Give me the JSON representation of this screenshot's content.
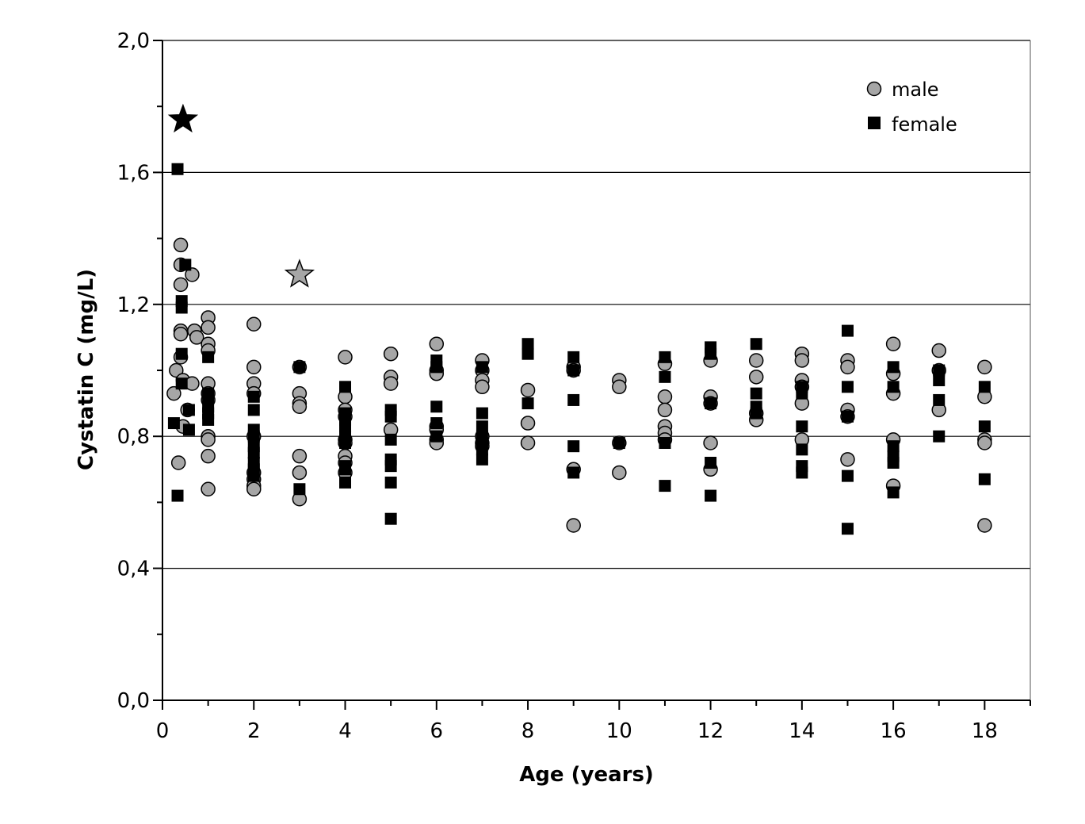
{
  "chart_data": {
    "type": "scatter",
    "xlabel": "Age (years)",
    "ylabel": "Cystatin C (mg/L)",
    "xlim": [
      0,
      19
    ],
    "ylim": [
      0,
      2.0
    ],
    "x_ticks": [
      "0",
      "2",
      "4",
      "6",
      "8",
      "10",
      "12",
      "14",
      "16",
      "18"
    ],
    "y_ticks": [
      "0,0",
      "0,4",
      "0,8",
      "1,2",
      "1,6",
      "2,0"
    ],
    "grid": "horizontal",
    "legend_position": "top-right",
    "colors": {
      "male": "#a6a6a6",
      "female": "#000000",
      "gridline": "#000000"
    },
    "series": [
      {
        "name": "male",
        "marker": "circle",
        "points": [
          [
            0.25,
            0.93
          ],
          [
            0.3,
            1.0
          ],
          [
            0.35,
            0.72
          ],
          [
            0.4,
            1.38
          ],
          [
            0.4,
            1.32
          ],
          [
            0.4,
            1.26
          ],
          [
            0.4,
            1.12
          ],
          [
            0.4,
            1.11
          ],
          [
            0.4,
            1.04
          ],
          [
            0.45,
            0.97
          ],
          [
            0.45,
            0.83
          ],
          [
            0.55,
            0.88
          ],
          [
            0.65,
            1.29
          ],
          [
            0.65,
            0.96
          ],
          [
            0.7,
            1.12
          ],
          [
            0.75,
            1.1
          ],
          [
            1,
            1.16
          ],
          [
            1,
            1.13
          ],
          [
            1,
            1.08
          ],
          [
            1,
            1.06
          ],
          [
            1,
            0.96
          ],
          [
            1,
            0.93
          ],
          [
            1,
            0.91
          ],
          [
            1,
            0.8
          ],
          [
            1,
            0.79
          ],
          [
            1,
            0.74
          ],
          [
            1,
            0.64
          ],
          [
            2,
            1.14
          ],
          [
            2,
            1.01
          ],
          [
            2,
            0.96
          ],
          [
            2,
            0.93
          ],
          [
            2,
            0.8
          ],
          [
            2,
            0.69
          ],
          [
            2,
            0.67
          ],
          [
            2,
            0.65
          ],
          [
            2,
            0.64
          ],
          [
            3,
            1.01
          ],
          [
            3,
            0.93
          ],
          [
            3,
            0.9
          ],
          [
            3,
            0.89
          ],
          [
            3,
            0.74
          ],
          [
            3,
            0.69
          ],
          [
            3,
            0.61
          ],
          [
            4,
            1.04
          ],
          [
            4,
            0.92
          ],
          [
            4,
            0.88
          ],
          [
            4,
            0.86
          ],
          [
            4,
            0.79
          ],
          [
            4,
            0.78
          ],
          [
            4,
            0.74
          ],
          [
            4,
            0.72
          ],
          [
            4,
            0.69
          ],
          [
            5,
            1.05
          ],
          [
            5,
            0.98
          ],
          [
            5,
            0.96
          ],
          [
            5,
            0.82
          ],
          [
            6,
            1.08
          ],
          [
            6,
            1.0
          ],
          [
            6,
            0.99
          ],
          [
            6,
            0.83
          ],
          [
            6,
            0.82
          ],
          [
            6,
            0.79
          ],
          [
            6,
            0.78
          ],
          [
            7,
            1.03
          ],
          [
            7,
            1.0
          ],
          [
            7,
            0.97
          ],
          [
            7,
            0.95
          ],
          [
            7,
            0.8
          ],
          [
            7,
            0.78
          ],
          [
            7,
            0.77
          ],
          [
            8,
            0.94
          ],
          [
            8,
            0.84
          ],
          [
            8,
            0.78
          ],
          [
            9,
            1.01
          ],
          [
            9,
            1.0
          ],
          [
            9,
            0.7
          ],
          [
            9,
            0.53
          ],
          [
            10,
            0.97
          ],
          [
            10,
            0.95
          ],
          [
            10,
            0.78
          ],
          [
            10,
            0.69
          ],
          [
            11,
            1.02
          ],
          [
            11,
            0.92
          ],
          [
            11,
            0.88
          ],
          [
            11,
            0.83
          ],
          [
            11,
            0.81
          ],
          [
            11,
            0.79
          ],
          [
            12,
            1.03
          ],
          [
            12,
            0.92
          ],
          [
            12,
            0.9
          ],
          [
            12,
            0.78
          ],
          [
            12,
            0.7
          ],
          [
            13,
            1.03
          ],
          [
            13,
            0.98
          ],
          [
            13,
            0.87
          ],
          [
            13,
            0.85
          ],
          [
            14,
            1.05
          ],
          [
            14,
            1.03
          ],
          [
            14,
            0.97
          ],
          [
            14,
            0.95
          ],
          [
            14,
            0.9
          ],
          [
            14,
            0.79
          ],
          [
            15,
            1.03
          ],
          [
            15,
            1.01
          ],
          [
            15,
            0.88
          ],
          [
            15,
            0.86
          ],
          [
            15,
            0.73
          ],
          [
            16,
            1.08
          ],
          [
            16,
            0.99
          ],
          [
            16,
            0.93
          ],
          [
            16,
            0.79
          ],
          [
            16,
            0.65
          ],
          [
            17,
            1.06
          ],
          [
            17,
            1.0
          ],
          [
            17,
            0.88
          ],
          [
            18,
            1.01
          ],
          [
            18,
            0.92
          ],
          [
            18,
            0.79
          ],
          [
            18,
            0.78
          ],
          [
            18,
            0.53
          ]
        ]
      },
      {
        "name": "female",
        "marker": "square",
        "points": [
          [
            0.25,
            0.84
          ],
          [
            0.33,
            1.61
          ],
          [
            0.33,
            0.62
          ],
          [
            0.42,
            1.21
          ],
          [
            0.42,
            1.19
          ],
          [
            0.42,
            1.05
          ],
          [
            0.42,
            0.96
          ],
          [
            0.5,
            1.32
          ],
          [
            0.58,
            0.88
          ],
          [
            0.58,
            0.82
          ],
          [
            1,
            1.04
          ],
          [
            1,
            0.93
          ],
          [
            1,
            0.92
          ],
          [
            1,
            0.89
          ],
          [
            1,
            0.87
          ],
          [
            1,
            0.85
          ],
          [
            2,
            0.92
          ],
          [
            2,
            0.88
          ],
          [
            2,
            0.82
          ],
          [
            2,
            0.8
          ],
          [
            2,
            0.77
          ],
          [
            2,
            0.75
          ],
          [
            2,
            0.72
          ],
          [
            2,
            0.7
          ],
          [
            2,
            0.68
          ],
          [
            3,
            1.01
          ],
          [
            3,
            0.64
          ],
          [
            4,
            0.95
          ],
          [
            4,
            0.87
          ],
          [
            4,
            0.85
          ],
          [
            4,
            0.83
          ],
          [
            4,
            0.8
          ],
          [
            4,
            0.78
          ],
          [
            4,
            0.71
          ],
          [
            4,
            0.7
          ],
          [
            4,
            0.66
          ],
          [
            5,
            0.88
          ],
          [
            5,
            0.86
          ],
          [
            5,
            0.79
          ],
          [
            5,
            0.73
          ],
          [
            5,
            0.71
          ],
          [
            5,
            0.66
          ],
          [
            5,
            0.55
          ],
          [
            6,
            1.03
          ],
          [
            6,
            1.01
          ],
          [
            6,
            0.89
          ],
          [
            6,
            0.84
          ],
          [
            6,
            0.8
          ],
          [
            7,
            1.01
          ],
          [
            7,
            0.87
          ],
          [
            7,
            0.83
          ],
          [
            7,
            0.8
          ],
          [
            7,
            0.78
          ],
          [
            7,
            0.76
          ],
          [
            7,
            0.73
          ],
          [
            8,
            1.08
          ],
          [
            8,
            1.05
          ],
          [
            8,
            0.9
          ],
          [
            9,
            1.04
          ],
          [
            9,
            1.0
          ],
          [
            9,
            0.91
          ],
          [
            9,
            0.77
          ],
          [
            9,
            0.69
          ],
          [
            10,
            0.78
          ],
          [
            11,
            1.04
          ],
          [
            11,
            0.98
          ],
          [
            11,
            0.78
          ],
          [
            11,
            0.65
          ],
          [
            12,
            1.07
          ],
          [
            12,
            1.05
          ],
          [
            12,
            0.9
          ],
          [
            12,
            0.72
          ],
          [
            12,
            0.62
          ],
          [
            13,
            1.08
          ],
          [
            13,
            0.93
          ],
          [
            13,
            0.89
          ],
          [
            13,
            0.87
          ],
          [
            14,
            0.95
          ],
          [
            14,
            0.93
          ],
          [
            14,
            0.83
          ],
          [
            14,
            0.76
          ],
          [
            14,
            0.71
          ],
          [
            14,
            0.69
          ],
          [
            15,
            1.12
          ],
          [
            15,
            0.95
          ],
          [
            15,
            0.86
          ],
          [
            15,
            0.68
          ],
          [
            15,
            0.52
          ],
          [
            16,
            1.01
          ],
          [
            16,
            0.95
          ],
          [
            16,
            0.77
          ],
          [
            16,
            0.74
          ],
          [
            16,
            0.72
          ],
          [
            16,
            0.63
          ],
          [
            17,
            1.0
          ],
          [
            17,
            0.97
          ],
          [
            17,
            0.91
          ],
          [
            17,
            0.8
          ],
          [
            18,
            0.95
          ],
          [
            18,
            0.83
          ],
          [
            18,
            0.67
          ]
        ]
      },
      {
        "marker": "star",
        "color": "#000000",
        "points": [
          [
            0.45,
            1.76
          ]
        ]
      },
      {
        "marker": "star",
        "color": "#a6a6a6",
        "points": [
          [
            3.0,
            1.29
          ]
        ]
      }
    ],
    "legend": [
      {
        "label": "male",
        "marker": "circle"
      },
      {
        "label": "female",
        "marker": "square"
      }
    ]
  }
}
